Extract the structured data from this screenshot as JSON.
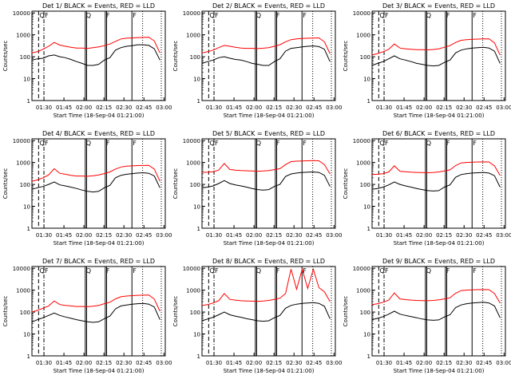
{
  "common": {
    "ylabel": "Counts/sec",
    "xlabel": "Start Time (18-Sep-04 01:21:00)",
    "x_ticks": [
      "01:30",
      "01:45",
      "02:00",
      "02:15",
      "02:30",
      "02:45",
      "03:00"
    ],
    "y_ticks": [
      "1",
      "10",
      "100",
      "1000",
      "10000"
    ],
    "flags": [
      "Q",
      "F",
      "Q",
      "F",
      "F"
    ],
    "colors": {
      "events": "#000000",
      "lld": "#ff0000"
    }
  },
  "chart_data": [
    {
      "type": "line",
      "title": "Det 1/ BLACK = Events, RED = LLD",
      "x_unit": "minutes after 01:21:00",
      "xlim": [
        0,
        100
      ],
      "ylim": [
        1,
        12000
      ],
      "y_scale": "log",
      "events_minutes": [
        0,
        5,
        9,
        12,
        15,
        20,
        25,
        30,
        35,
        40,
        45,
        50,
        55,
        60,
        65,
        70,
        72,
        75,
        78,
        80,
        85,
        90,
        93,
        95
      ],
      "series": [
        {
          "name": "BLACK = Events",
          "values": [
            70,
            80,
            85,
            110,
            120,
            100,
            90,
            75,
            60,
            50,
            40,
            40,
            45,
            70,
            90,
            200,
            260,
            300,
            320,
            350,
            350,
            330,
            230,
            70
          ]
        },
        {
          "name": "RED = LLD",
          "values": [
            150,
            170,
            220,
            300,
            450,
            340,
            300,
            270,
            250,
            250,
            240,
            260,
            280,
            320,
            380,
            500,
            650,
            700,
            720,
            750,
            760,
            780,
            520,
            150
          ]
        }
      ]
    },
    {
      "type": "line",
      "title": "Det 2/ BLACK = Events, RED = LLD",
      "x_unit": "minutes after 01:21:00",
      "xlim": [
        0,
        100
      ],
      "ylim": [
        1,
        12000
      ],
      "y_scale": "log",
      "series": [
        {
          "name": "BLACK = Events",
          "values": [
            50,
            60,
            70,
            90,
            100,
            85,
            75,
            70,
            60,
            50,
            45,
            40,
            40,
            60,
            80,
            180,
            240,
            260,
            280,
            300,
            310,
            290,
            220,
            60
          ]
        },
        {
          "name": "RED = LLD",
          "values": [
            150,
            170,
            200,
            260,
            330,
            300,
            270,
            250,
            240,
            240,
            235,
            245,
            260,
            300,
            350,
            480,
            600,
            650,
            680,
            700,
            710,
            720,
            480,
            140
          ]
        }
      ]
    },
    {
      "type": "line",
      "title": "Det 3/ BLACK = Events, RED = LLD",
      "x_unit": "minutes after 01:21:00",
      "xlim": [
        0,
        100
      ],
      "ylim": [
        1,
        12000
      ],
      "y_scale": "log",
      "series": [
        {
          "name": "BLACK = Events",
          "values": [
            40,
            50,
            60,
            80,
            110,
            80,
            70,
            60,
            50,
            45,
            40,
            38,
            40,
            55,
            70,
            150,
            200,
            230,
            250,
            260,
            270,
            250,
            180,
            50
          ]
        },
        {
          "name": "RED = LLD",
          "values": [
            120,
            140,
            170,
            220,
            380,
            250,
            230,
            220,
            210,
            210,
            205,
            215,
            230,
            270,
            320,
            450,
            560,
            600,
            620,
            640,
            650,
            660,
            430,
            120
          ]
        }
      ]
    },
    {
      "type": "line",
      "title": "Det 4/ BLACK = Events, RED = LLD",
      "x_unit": "minutes after 01:21:00",
      "xlim": [
        0,
        100
      ],
      "ylim": [
        1,
        12000
      ],
      "y_scale": "log",
      "series": [
        {
          "name": "BLACK = Events",
          "values": [
            60,
            70,
            80,
            100,
            130,
            95,
            85,
            75,
            65,
            55,
            48,
            45,
            48,
            70,
            90,
            200,
            260,
            290,
            310,
            330,
            340,
            320,
            240,
            70
          ]
        },
        {
          "name": "RED = LLD",
          "values": [
            140,
            160,
            200,
            270,
            520,
            320,
            290,
            260,
            240,
            240,
            235,
            250,
            270,
            310,
            370,
            500,
            620,
            680,
            700,
            720,
            730,
            740,
            500,
            140
          ]
        }
      ]
    },
    {
      "type": "line",
      "title": "Det 5/ BLACK = Events, RED = LLD",
      "x_unit": "minutes after 01:21:00",
      "xlim": [
        0,
        100
      ],
      "ylim": [
        1,
        12000
      ],
      "y_scale": "log",
      "series": [
        {
          "name": "BLACK = Events",
          "values": [
            70,
            75,
            85,
            110,
            150,
            110,
            95,
            85,
            75,
            65,
            58,
            55,
            58,
            80,
            100,
            230,
            300,
            330,
            350,
            360,
            370,
            350,
            260,
            80
          ]
        },
        {
          "name": "RED = LLD",
          "values": [
            350,
            360,
            380,
            450,
            900,
            480,
            450,
            430,
            420,
            410,
            400,
            410,
            430,
            470,
            520,
            800,
            1100,
            1150,
            1180,
            1200,
            1220,
            1200,
            800,
            300
          ]
        }
      ]
    },
    {
      "type": "line",
      "title": "Det 6/ BLACK = Events, RED = LLD",
      "x_unit": "minutes after 01:21:00",
      "xlim": [
        0,
        100
      ],
      "ylim": [
        1,
        12000
      ],
      "y_scale": "log",
      "series": [
        {
          "name": "BLACK = Events",
          "values": [
            60,
            65,
            75,
            95,
            130,
            100,
            85,
            75,
            65,
            58,
            52,
            50,
            52,
            75,
            95,
            210,
            280,
            310,
            330,
            340,
            350,
            330,
            250,
            75
          ]
        },
        {
          "name": "RED = LLD",
          "values": [
            280,
            290,
            310,
            370,
            700,
            400,
            380,
            360,
            350,
            345,
            340,
            350,
            370,
            410,
            460,
            720,
            950,
            1000,
            1030,
            1050,
            1060,
            1050,
            700,
            260
          ]
        }
      ]
    },
    {
      "type": "line",
      "title": "Det 7/ BLACK = Events, RED = LLD",
      "x_unit": "minutes after 01:21:00",
      "xlim": [
        0,
        100
      ],
      "ylim": [
        1,
        12000
      ],
      "y_scale": "log",
      "series": [
        {
          "name": "BLACK = Events",
          "values": [
            35,
            45,
            55,
            70,
            90,
            70,
            60,
            52,
            45,
            40,
            36,
            34,
            36,
            50,
            65,
            140,
            190,
            210,
            230,
            240,
            250,
            230,
            170,
            45
          ]
        },
        {
          "name": "RED = LLD",
          "values": [
            100,
            120,
            150,
            190,
            320,
            220,
            200,
            190,
            180,
            180,
            175,
            185,
            200,
            240,
            280,
            400,
            500,
            540,
            560,
            580,
            590,
            600,
            390,
            110
          ]
        }
      ]
    },
    {
      "type": "line",
      "title": "Det 8/ BLACK = Events, RED = LLD",
      "x_unit": "minutes after 01:21:00",
      "xlim": [
        0,
        100
      ],
      "ylim": [
        1,
        12000
      ],
      "y_scale": "log",
      "series": [
        {
          "name": "BLACK = Events",
          "values": [
            40,
            48,
            58,
            75,
            100,
            75,
            65,
            58,
            50,
            45,
            40,
            38,
            40,
            55,
            70,
            150,
            200,
            230,
            250,
            260,
            270,
            250,
            185,
            50
          ]
        },
        {
          "name": "RED = LLD",
          "values": [
            200,
            220,
            260,
            330,
            700,
            380,
            350,
            330,
            320,
            315,
            310,
            320,
            340,
            380,
            430,
            700,
            9000,
            1100,
            9000,
            1200,
            9000,
            1300,
            850,
            300
          ]
        }
      ]
    },
    {
      "type": "line",
      "title": "Det 9/ BLACK = Events, RED = LLD",
      "x_unit": "minutes after 01:21:00",
      "xlim": [
        0,
        100
      ],
      "ylim": [
        1,
        12000
      ],
      "y_scale": "log",
      "series": [
        {
          "name": "BLACK = Events",
          "values": [
            45,
            52,
            62,
            80,
            110,
            80,
            70,
            62,
            55,
            48,
            44,
            42,
            44,
            60,
            75,
            160,
            210,
            240,
            260,
            270,
            280,
            260,
            190,
            55
          ]
        },
        {
          "name": "RED = LLD",
          "values": [
            220,
            240,
            280,
            350,
            750,
            400,
            370,
            350,
            340,
            335,
            330,
            340,
            360,
            400,
            450,
            720,
            950,
            1000,
            1030,
            1050,
            1060,
            1050,
            700,
            260
          ]
        }
      ]
    }
  ]
}
